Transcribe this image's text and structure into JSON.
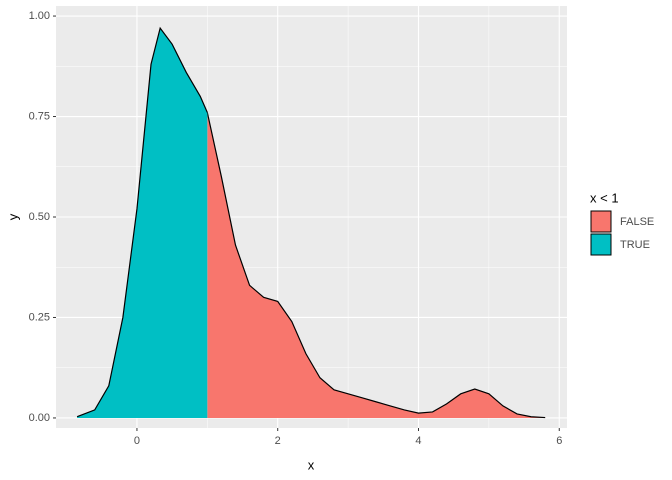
{
  "chart_data": {
    "type": "area",
    "x_label": "x",
    "y_label": "y",
    "legend_title": "x < 1",
    "legend_position": "right",
    "x": [
      -0.85,
      -0.6,
      -0.4,
      -0.2,
      0,
      0.2,
      0.33,
      0.5,
      0.7,
      0.9,
      1.0,
      1.2,
      1.4,
      1.6,
      1.8,
      2.0,
      2.2,
      2.4,
      2.6,
      2.8,
      3.0,
      3.2,
      3.4,
      3.6,
      3.8,
      4.0,
      4.2,
      4.4,
      4.6,
      4.8,
      5.0,
      5.2,
      5.4,
      5.6,
      5.8
    ],
    "series": [
      {
        "name": "FALSE",
        "color": "#F8766D",
        "values": [
          null,
          null,
          null,
          null,
          null,
          null,
          null,
          null,
          null,
          null,
          0.76,
          0.6,
          0.43,
          0.33,
          0.3,
          0.29,
          0.24,
          0.16,
          0.1,
          0.07,
          0.06,
          0.05,
          0.04,
          0.03,
          0.02,
          0.012,
          0.015,
          0.035,
          0.06,
          0.072,
          0.06,
          0.03,
          0.01,
          0.003,
          0.001
        ]
      },
      {
        "name": "TRUE",
        "color": "#00BFC4",
        "values": [
          0.003,
          0.02,
          0.08,
          0.25,
          0.52,
          0.88,
          0.97,
          0.93,
          0.86,
          0.8,
          0.76,
          null,
          null,
          null,
          null,
          null,
          null,
          null,
          null,
          null,
          null,
          null,
          null,
          null,
          null,
          null,
          null,
          null,
          null,
          null,
          null,
          null,
          null,
          null,
          null
        ]
      }
    ],
    "xlim": [
      -1.15,
      6.11
    ],
    "ylim": [
      -0.025,
      1.025
    ],
    "xticks": [
      0,
      2,
      4,
      6
    ],
    "yticks": [
      {
        "value": 0,
        "label": "0.00"
      },
      {
        "value": 0.25,
        "label": "0.25"
      },
      {
        "value": 0.5,
        "label": "0.50"
      },
      {
        "value": 0.75,
        "label": "0.75"
      },
      {
        "value": 1,
        "label": "1.00"
      }
    ],
    "grid": true,
    "outline_color": "#000000"
  }
}
